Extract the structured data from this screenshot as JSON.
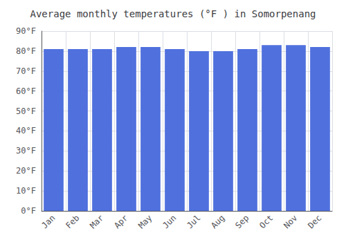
{
  "chart_data": {
    "type": "bar",
    "title": "Average monthly temperatures (°F ) in Somorpenang",
    "categories": [
      "Jan",
      "Feb",
      "Mar",
      "Apr",
      "May",
      "Jun",
      "Jul",
      "Aug",
      "Sep",
      "Oct",
      "Nov",
      "Dec"
    ],
    "values": [
      81,
      81,
      81,
      82,
      82,
      81,
      80,
      80,
      81,
      83,
      83,
      82
    ],
    "ylim": [
      0,
      90
    ],
    "yticks": [
      {
        "value": 0,
        "label": "0°F"
      },
      {
        "value": 10,
        "label": "10°F"
      },
      {
        "value": 20,
        "label": "20°F"
      },
      {
        "value": 30,
        "label": "30°F"
      },
      {
        "value": 40,
        "label": "40°F"
      },
      {
        "value": 50,
        "label": "50°F"
      },
      {
        "value": 60,
        "label": "60°F"
      },
      {
        "value": 70,
        "label": "70°F"
      },
      {
        "value": 80,
        "label": "80°F"
      },
      {
        "value": 90,
        "label": "90°F"
      }
    ],
    "grid": true
  }
}
